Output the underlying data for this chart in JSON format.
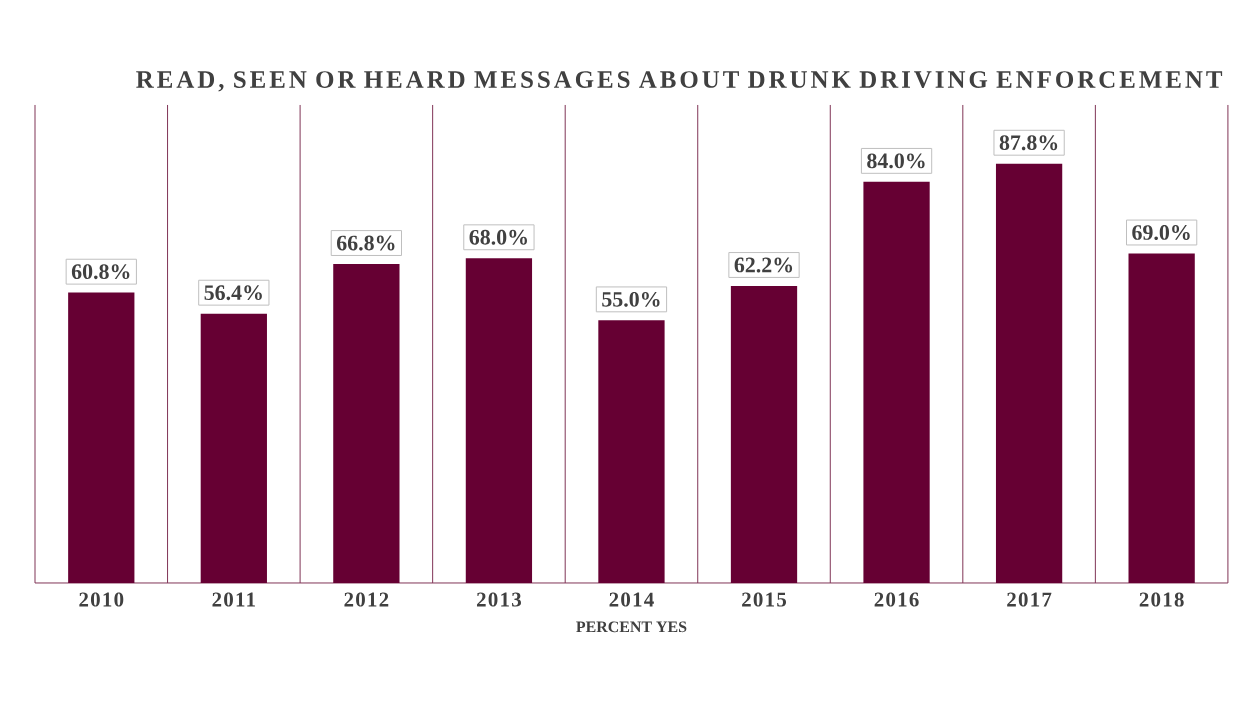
{
  "chart_data": {
    "type": "bar",
    "title": "READ, SEEN OR HEARD MESSAGES ABOUT DRUNK DRIVING ENFORCEMENT",
    "xlabel": "PERCENT YES",
    "categories": [
      "2010",
      "2011",
      "2012",
      "2013",
      "2014",
      "2015",
      "2016",
      "2017",
      "2018"
    ],
    "values": [
      60.8,
      56.4,
      66.8,
      68.0,
      55.0,
      62.2,
      84.0,
      87.8,
      69.0
    ],
    "value_labels": [
      "60.8%",
      "56.4%",
      "66.8%",
      "68.0%",
      "55.0%",
      "62.2%",
      "84.0%",
      "87.8%",
      "69.0%"
    ],
    "color": "#660033",
    "grid": "x"
  }
}
